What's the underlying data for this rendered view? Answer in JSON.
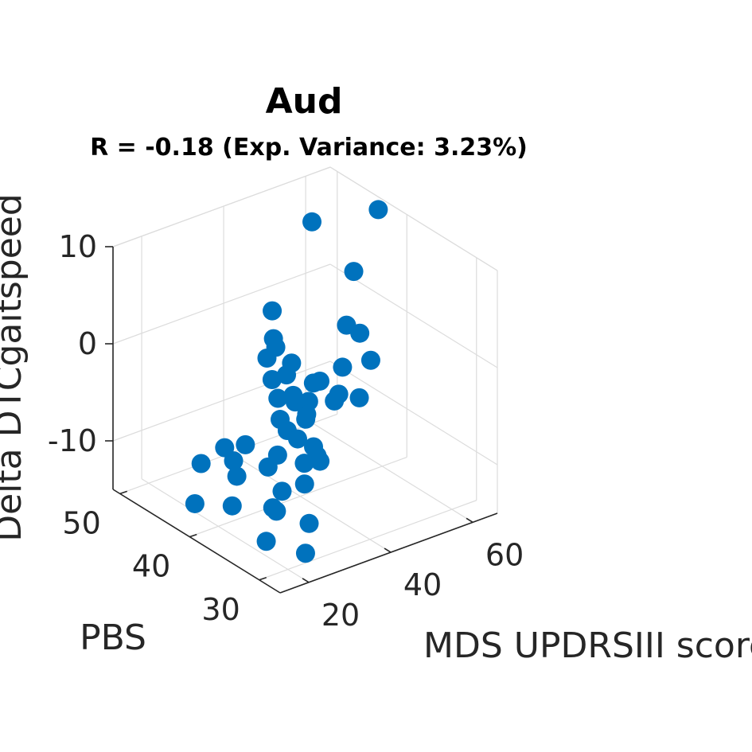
{
  "chart_data": {
    "type": "scatter3d",
    "title": "Aud",
    "subtitle": "R = -0.18 (Exp. Variance: 3.23%)",
    "xlabel": "MDS UPDRSIII score",
    "ylabel": "PBS",
    "zlabel": "Delta DTCgaitspeed",
    "xlim": [
      13,
      66
    ],
    "ylim": [
      27,
      51
    ],
    "zlim": [
      -15,
      10
    ],
    "xticks": [
      "20",
      "40",
      "60"
    ],
    "yticks": [
      "30",
      "40",
      "50"
    ],
    "zticks": [
      "10",
      "0",
      "-10"
    ],
    "grid": true,
    "marker_color": "#0072BD",
    "points": [
      {
        "x": 62.6,
        "y": 42.1,
        "z": 10.1
      },
      {
        "x": 50.5,
        "y": 38.5,
        "z": 7.2
      },
      {
        "x": 49.6,
        "y": 37.1,
        "z": 1.6
      },
      {
        "x": 59.5,
        "y": 49.8,
        "z": 5.9
      },
      {
        "x": 43.3,
        "y": 35.3,
        "z": 4.2
      },
      {
        "x": 46.5,
        "y": 33.7,
        "z": 0.8
      },
      {
        "x": 35.7,
        "y": 41.5,
        "z": 4.1
      },
      {
        "x": 33.8,
        "y": 40.2,
        "z": 2.1
      },
      {
        "x": 34.2,
        "y": 40.1,
        "z": 1.2
      },
      {
        "x": 38.3,
        "y": 34.1,
        "z": -2.3
      },
      {
        "x": 24.4,
        "y": 35.6,
        "z": 3.6
      },
      {
        "x": 30.6,
        "y": 28.4,
        "z": 4.9
      },
      {
        "x": 29.0,
        "y": 35.5,
        "z": 1.2
      },
      {
        "x": 33.8,
        "y": 40.4,
        "z": -2.2
      },
      {
        "x": 37.6,
        "y": 36.7,
        "z": -1.5
      },
      {
        "x": 38.0,
        "y": 33.3,
        "z": -1.2
      },
      {
        "x": 42.8,
        "y": 42.9,
        "z": -3.0
      },
      {
        "x": 47.0,
        "y": 41.3,
        "z": -4.8
      },
      {
        "x": 40.0,
        "y": 38.8,
        "z": -4.7
      },
      {
        "x": 36.3,
        "y": 36.9,
        "z": -4.6
      },
      {
        "x": 38.1,
        "y": 30.4,
        "z": -0.3
      },
      {
        "x": 30.6,
        "y": 35.2,
        "z": -1.7
      },
      {
        "x": 30.3,
        "y": 37.5,
        "z": -2.3
      },
      {
        "x": 34.2,
        "y": 35.8,
        "z": -4.3
      },
      {
        "x": 27.1,
        "y": 35.3,
        "z": -3.0
      },
      {
        "x": 28.8,
        "y": 31.5,
        "z": -4.4
      },
      {
        "x": 32.4,
        "y": 37.4,
        "z": -5.9
      },
      {
        "x": 32.2,
        "y": 33.0,
        "z": -6.5
      },
      {
        "x": 31.2,
        "y": 35.2,
        "z": -5.6
      },
      {
        "x": 24.4,
        "y": 38.7,
        "z": -6.7
      },
      {
        "x": 25.0,
        "y": 35.8,
        "z": -7.8
      },
      {
        "x": 43.7,
        "y": 43.2,
        "z": -6.6
      },
      {
        "x": 39.2,
        "y": 36.7,
        "z": -9.8
      },
      {
        "x": 22.4,
        "y": 40.5,
        "z": -7.5
      },
      {
        "x": 22.2,
        "y": 39.1,
        "z": -8.2
      },
      {
        "x": 21.3,
        "y": 38.1,
        "z": -9.2
      },
      {
        "x": 19.2,
        "y": 42.0,
        "z": -9.3
      },
      {
        "x": 18.3,
        "y": 37.0,
        "z": -11.3
      },
      {
        "x": 14.8,
        "y": 40.3,
        "z": -12.0
      },
      {
        "x": 27.4,
        "y": 32.0,
        "z": -6.1
      },
      {
        "x": 28.6,
        "y": 35.9,
        "z": -10.9
      },
      {
        "x": 28.7,
        "y": 36.6,
        "z": -7.5
      },
      {
        "x": 22.8,
        "y": 33.3,
        "z": -10.9
      },
      {
        "x": 21.4,
        "y": 33.0,
        "z": -10.2
      },
      {
        "x": 27.9,
        "y": 31.6,
        "z": -12.2
      },
      {
        "x": 19.3,
        "y": 32.7,
        "z": -13.2
      },
      {
        "x": 24.3,
        "y": 30.0,
        "z": -14.0
      },
      {
        "x": 31.2,
        "y": 34.2,
        "z": -9.8
      }
    ]
  }
}
